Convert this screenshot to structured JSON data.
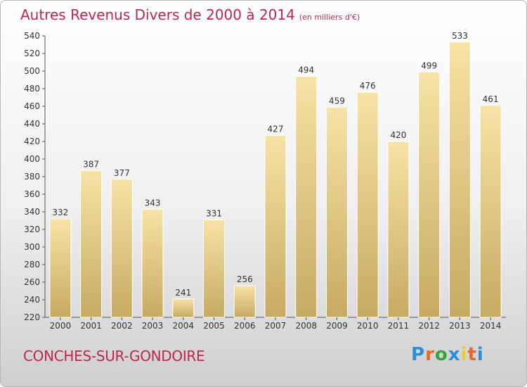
{
  "header": {
    "title": "Autres Revenus Divers de 2000 à 2014",
    "subtitle": "(en milliers d'€)"
  },
  "footer": {
    "location": "CONCHES-SUR-GONDOIRE",
    "logo": "Proxiti"
  },
  "colors": {
    "title": "#c0264f",
    "bar_light": "#f7e3a6",
    "bar_dark": "#c7aa62",
    "axis": "#555555",
    "logo_letters": [
      "#2a8fd6",
      "#e8672a",
      "#3aa636",
      "#2a8fd6",
      "#e8d02a",
      "#e8672a",
      "#2a8fd6"
    ]
  },
  "chart_data": {
    "type": "bar",
    "categories": [
      "2000",
      "2001",
      "2002",
      "2003",
      "2004",
      "2005",
      "2006",
      "2007",
      "2008",
      "2009",
      "2010",
      "2011",
      "2012",
      "2013",
      "2014"
    ],
    "values": [
      332,
      387,
      377,
      343,
      241,
      331,
      256,
      427,
      494,
      459,
      476,
      420,
      499,
      533,
      461
    ],
    "ylim": [
      220,
      540
    ],
    "yticks": [
      220,
      240,
      260,
      280,
      300,
      320,
      340,
      360,
      380,
      400,
      420,
      440,
      460,
      480,
      500,
      520,
      540
    ],
    "data_labels": true,
    "grid": false,
    "title": "Autres Revenus Divers de 2000 à 2014",
    "xlabel": "",
    "ylabel": ""
  }
}
